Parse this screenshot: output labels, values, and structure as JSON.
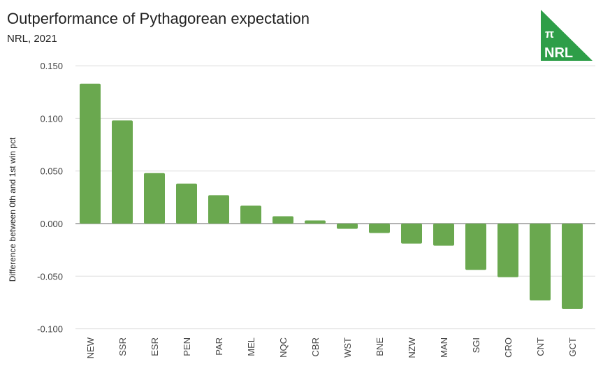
{
  "chart_data": {
    "type": "bar",
    "title": "Outperformance of Pythagorean expectation",
    "subtitle": "NRL, 2021",
    "xlabel": "",
    "ylabel": "Difference between 0th and 1st win pct",
    "categories": [
      "NEW",
      "SSR",
      "ESR",
      "PEN",
      "PAR",
      "MEL",
      "NQC",
      "CBR",
      "WST",
      "BNE",
      "NZW",
      "MAN",
      "SGI",
      "CRO",
      "CNT",
      "GCT"
    ],
    "values": [
      0.133,
      0.098,
      0.048,
      0.038,
      0.027,
      0.017,
      0.007,
      0.003,
      -0.005,
      -0.009,
      -0.019,
      -0.021,
      -0.044,
      -0.051,
      -0.073,
      -0.081
    ],
    "ylim": [
      -0.1,
      0.15
    ],
    "yticks": [
      "0.150",
      "0.100",
      "0.050",
      "0.000",
      "-0.050",
      "-0.100"
    ],
    "ytick_values": [
      0.15,
      0.1,
      0.05,
      0,
      -0.05,
      -0.1
    ],
    "grid": true,
    "bar_color": "#6aa84f"
  },
  "logo": {
    "symbol": "π",
    "text": "NRL",
    "color": "#2e9e48"
  }
}
